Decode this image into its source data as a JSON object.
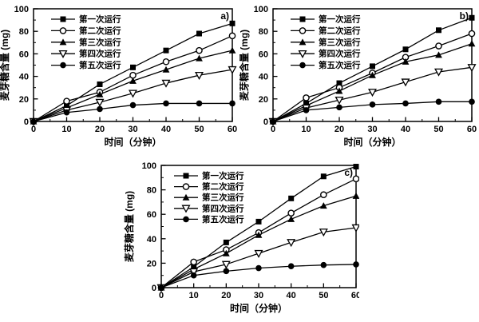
{
  "figure": {
    "background_color": "#ffffff",
    "line_color": "#000000"
  },
  "chart_data": [
    {
      "type": "line",
      "panel_label": "a)",
      "title": "",
      "xlabel": "时间（分钟）",
      "ylabel": "麦芽糖含量 (mg)",
      "xlim": [
        0,
        60
      ],
      "ylim": [
        0,
        100
      ],
      "xticks": [
        0,
        10,
        20,
        30,
        40,
        50,
        60
      ],
      "yticks": [
        0,
        20,
        40,
        60,
        80,
        100
      ],
      "grid": false,
      "legend_position": "top-left",
      "x": [
        0,
        10,
        20,
        30,
        40,
        50,
        60
      ],
      "series": [
        {
          "name": "第一次运行",
          "marker": "square-filled",
          "values": [
            0,
            14,
            33,
            48,
            63,
            78,
            87
          ]
        },
        {
          "name": "第二次运行",
          "marker": "circle-open",
          "values": [
            0,
            18,
            26,
            41,
            53,
            63,
            76
          ]
        },
        {
          "name": "第三次运行",
          "marker": "triangle-filled",
          "values": [
            0,
            12,
            24,
            36,
            46,
            56,
            63
          ]
        },
        {
          "name": "第四次运行",
          "marker": "triangle-down-open",
          "values": [
            0,
            10,
            17,
            25,
            34,
            41,
            46
          ]
        },
        {
          "name": "第五次运行",
          "marker": "circle-filled",
          "values": [
            0,
            8,
            11,
            14.5,
            16,
            16,
            16
          ]
        }
      ]
    },
    {
      "type": "line",
      "panel_label": "b)",
      "title": "",
      "xlabel": "时间（分钟）",
      "ylabel": "麦芽糖含量 (mg)",
      "xlim": [
        0,
        60
      ],
      "ylim": [
        0,
        100
      ],
      "xticks": [
        0,
        10,
        20,
        30,
        40,
        50,
        60
      ],
      "yticks": [
        0,
        20,
        40,
        60,
        80,
        100
      ],
      "grid": false,
      "legend_position": "top-left",
      "x": [
        0,
        10,
        20,
        30,
        40,
        50,
        60
      ],
      "series": [
        {
          "name": "第一次运行",
          "marker": "square-filled",
          "values": [
            0,
            16,
            34,
            49,
            64,
            81,
            92
          ]
        },
        {
          "name": "第二次运行",
          "marker": "circle-open",
          "values": [
            0,
            21,
            30,
            43,
            57,
            67,
            78
          ]
        },
        {
          "name": "第三次运行",
          "marker": "triangle-filled",
          "values": [
            0,
            14,
            27,
            41,
            53,
            59,
            69
          ]
        },
        {
          "name": "第四次运行",
          "marker": "triangle-down-open",
          "values": [
            0,
            12,
            19,
            26,
            35,
            44,
            48
          ]
        },
        {
          "name": "第五次运行",
          "marker": "circle-filled",
          "values": [
            0,
            10,
            12.5,
            15,
            16,
            17.5,
            17.5
          ]
        }
      ]
    },
    {
      "type": "line",
      "panel_label": "c)",
      "title": "",
      "xlabel": "时间（分钟）",
      "ylabel": "麦芽糖含量 (mg)",
      "xlim": [
        0,
        60
      ],
      "ylim": [
        0,
        100
      ],
      "xticks": [
        0,
        10,
        20,
        30,
        40,
        50,
        60
      ],
      "yticks": [
        0,
        20,
        40,
        60,
        80,
        100
      ],
      "grid": false,
      "legend_position": "top-left",
      "x": [
        0,
        10,
        20,
        30,
        40,
        50,
        60
      ],
      "series": [
        {
          "name": "第一次运行",
          "marker": "square-filled",
          "values": [
            0,
            17,
            37,
            54,
            73,
            91,
            99
          ]
        },
        {
          "name": "第二次运行",
          "marker": "circle-open",
          "values": [
            0,
            21,
            31,
            45,
            61,
            76,
            89
          ]
        },
        {
          "name": "第三次运行",
          "marker": "triangle-filled",
          "values": [
            0,
            15,
            28,
            43,
            56,
            67,
            75
          ]
        },
        {
          "name": "第四次运行",
          "marker": "triangle-down-open",
          "values": [
            0,
            13,
            19,
            28,
            37,
            45.5,
            49
          ]
        },
        {
          "name": "第五次运行",
          "marker": "circle-filled",
          "values": [
            0,
            10,
            13.5,
            16,
            17.5,
            18.5,
            19
          ]
        }
      ]
    }
  ]
}
